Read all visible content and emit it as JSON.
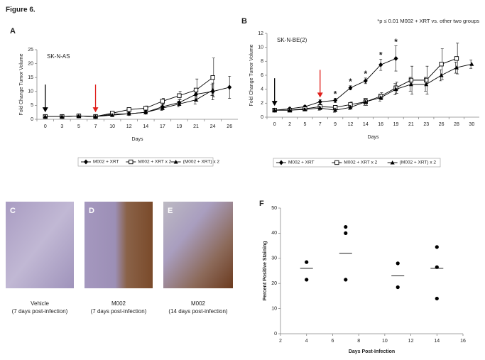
{
  "figure_title": "Figure 6.",
  "chart_data": [
    {
      "type": "line",
      "label": "A",
      "annotation": "SK-N-AS",
      "ylabel": "Fold Change Tumor Volume",
      "xlabel": "Days",
      "categories": [
        "0",
        "3",
        "5",
        "7",
        "10",
        "12",
        "14",
        "17",
        "19",
        "21",
        "24",
        "26"
      ],
      "ylim": [
        0,
        25
      ],
      "yticks": [
        0,
        5,
        10,
        15,
        20,
        25
      ],
      "arrows": [
        {
          "category_index": 0,
          "color": "#000000"
        },
        {
          "category_index": 3,
          "color": "#e0201c"
        }
      ],
      "series": [
        {
          "name": "M002 + XRT",
          "marker": "diamond",
          "color": "#000000",
          "values": [
            1,
            1,
            1.2,
            1,
            1.8,
            2,
            2.5,
            4.5,
            6,
            9,
            10,
            11.5
          ],
          "errors": [
            0.3,
            0.3,
            0.3,
            0.3,
            0.5,
            0.5,
            0.6,
            0.8,
            1,
            2,
            3,
            4
          ]
        },
        {
          "name": "M002 + XRT x 2",
          "marker": "square",
          "color": "#000000",
          "values": [
            1,
            1,
            1.2,
            1,
            2.2,
            3.5,
            4,
            6.5,
            8.5,
            10.5,
            15,
            null
          ],
          "errors": [
            0.3,
            0.3,
            0.3,
            0.3,
            0.5,
            0.6,
            0.8,
            1,
            1.5,
            4,
            7,
            null
          ]
        },
        {
          "name": "(M002 + XRT) x 2",
          "marker": "triangle",
          "color": "#000000",
          "values": [
            1,
            1,
            1.2,
            1,
            1.5,
            2,
            2.5,
            4,
            5.5,
            7,
            10.5,
            null
          ],
          "errors": [
            0.3,
            0.3,
            0.3,
            0.3,
            0.4,
            0.5,
            0.5,
            0.8,
            1,
            1.5,
            2,
            null
          ]
        }
      ]
    },
    {
      "type": "line",
      "label": "B",
      "annotation": "SK-N-BE(2)",
      "note": "*p ≤ 0.01 M002 + XRT vs. other two groups",
      "ylabel": "Fold Change Tumor Volume",
      "xlabel": "Days",
      "categories": [
        "0",
        "2",
        "5",
        "7",
        "9",
        "12",
        "14",
        "16",
        "19",
        "21",
        "23",
        "26",
        "28",
        "30"
      ],
      "ylim": [
        0,
        12
      ],
      "yticks": [
        0,
        2,
        4,
        6,
        8,
        10,
        12
      ],
      "arrows": [
        {
          "category_index": 0,
          "color": "#000000"
        },
        {
          "category_index": 3,
          "color": "#e0201c"
        }
      ],
      "significance": [
        null,
        null,
        null,
        null,
        "*",
        "*",
        "*",
        "*",
        "*",
        null,
        null,
        null,
        null,
        null
      ],
      "series": [
        {
          "name": "M002 + XRT",
          "marker": "diamond",
          "color": "#000000",
          "values": [
            1,
            1.2,
            1.5,
            2.2,
            2.4,
            4.2,
            5.2,
            7.5,
            8.4,
            null,
            null,
            null,
            null,
            null
          ],
          "errors": [
            0.2,
            0.2,
            0.2,
            0.3,
            0.3,
            0.3,
            0.4,
            0.8,
            1.8,
            null,
            null,
            null,
            null,
            null
          ]
        },
        {
          "name": "M002 + XRT x 2",
          "marker": "square",
          "color": "#000000",
          "values": [
            1,
            1,
            1.2,
            1.5,
            1.4,
            1.8,
            2.2,
            3,
            4.2,
            5.3,
            5.3,
            7.6,
            8.4,
            null
          ],
          "errors": [
            0.2,
            0.2,
            0.2,
            0.3,
            0.3,
            0.4,
            0.5,
            0.5,
            0.8,
            2,
            2,
            2.2,
            2.2,
            null
          ]
        },
        {
          "name": "(M002 + XRT) x 2",
          "marker": "triangle",
          "color": "#000000",
          "values": [
            1,
            1,
            1.1,
            1.3,
            1,
            1.4,
            2.2,
            2.8,
            4,
            4.7,
            4.7,
            6,
            7.1,
            7.6
          ],
          "errors": [
            0.2,
            0.2,
            0.2,
            0.3,
            0.3,
            0.3,
            0.5,
            0.5,
            0.8,
            1,
            1,
            0.8,
            0.8,
            0.6
          ]
        }
      ]
    },
    {
      "type": "scatter",
      "label": "F",
      "ylabel": "Percent Positive Staining",
      "xlabel": "Days Post-Infection",
      "x": [
        4,
        4,
        7,
        7,
        7,
        11,
        11,
        14,
        14,
        14
      ],
      "y": [
        28.5,
        21.5,
        42.5,
        40,
        21.5,
        28,
        18.5,
        34.5,
        26.5,
        14
      ],
      "means": {
        "x": [
          4,
          7,
          11,
          14
        ],
        "values": [
          26,
          32,
          23,
          26
        ]
      },
      "color": "#000000",
      "xlim": [
        2,
        16
      ],
      "xticks": [
        2,
        4,
        6,
        8,
        10,
        12,
        14,
        16
      ],
      "ylim": [
        0,
        50
      ],
      "yticks": [
        0,
        10,
        20,
        30,
        40,
        50
      ]
    }
  ],
  "image_panels": [
    {
      "label": "C",
      "caption": [
        "Vehicle",
        "(7 days post-infection)"
      ]
    },
    {
      "label": "D",
      "caption": [
        "M002",
        "(7 days post-infection)"
      ]
    },
    {
      "label": "E",
      "caption": [
        "M002",
        "(14 days post-infection)"
      ]
    }
  ]
}
